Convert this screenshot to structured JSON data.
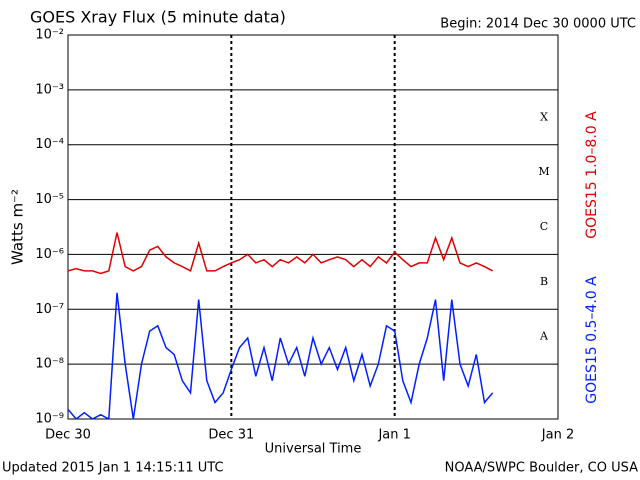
{
  "chart_data": {
    "type": "line",
    "title": "GOES Xray Flux (5 minute data)",
    "subtitle": "Begin:  2014 Dec 30 0000 UTC",
    "ylabel": "Watts m⁻²",
    "xlabel": "Universal Time",
    "footer_left": "Updated 2015 Jan  1 14:15:11 UTC",
    "footer_right": "NOAA/SWPC Boulder, CO USA",
    "class_labels": [
      "X",
      "M",
      "C",
      "B",
      "A"
    ],
    "log_y": true,
    "grid": true,
    "xlim": [
      0,
      3
    ],
    "xticks": [
      {
        "value": 0,
        "label": "Dec 30"
      },
      {
        "value": 1,
        "label": "Dec 31"
      },
      {
        "value": 2,
        "label": "Jan 1"
      },
      {
        "value": 3,
        "label": "Jan 2"
      }
    ],
    "ylim": [
      1e-09,
      0.01
    ],
    "yticks": [
      {
        "value": 1e-09,
        "label": "10⁻⁹"
      },
      {
        "value": 1e-08,
        "label": "10⁻⁸"
      },
      {
        "value": 1e-07,
        "label": "10⁻⁷"
      },
      {
        "value": 1e-06,
        "label": "10⁻⁶"
      },
      {
        "value": 1e-05,
        "label": "10⁻⁵"
      },
      {
        "value": 0.0001,
        "label": "10⁻⁴"
      },
      {
        "value": 0.001,
        "label": "10⁻³"
      },
      {
        "value": 0.01,
        "label": "10⁻²"
      }
    ],
    "x": [
      0,
      0.05,
      0.1,
      0.15,
      0.2,
      0.25,
      0.3,
      0.35,
      0.4,
      0.45,
      0.5,
      0.55,
      0.6,
      0.65,
      0.7,
      0.75,
      0.8,
      0.85,
      0.9,
      0.95,
      1,
      1.05,
      1.1,
      1.15,
      1.2,
      1.25,
      1.3,
      1.35,
      1.4,
      1.45,
      1.5,
      1.55,
      1.6,
      1.65,
      1.7,
      1.75,
      1.8,
      1.85,
      1.9,
      1.95,
      2,
      2.05,
      2.1,
      2.15,
      2.2,
      2.25,
      2.3,
      2.35,
      2.4,
      2.45,
      2.5,
      2.55,
      2.6
    ],
    "series": [
      {
        "name": "GOES15 1.0–8.0 A",
        "color": "#e00000",
        "values": [
          5e-07,
          5.5e-07,
          5e-07,
          5e-07,
          4.5e-07,
          5e-07,
          2.5e-06,
          6e-07,
          5e-07,
          6e-07,
          1.2e-06,
          1.4e-06,
          9e-07,
          7e-07,
          6e-07,
          5e-07,
          1.6e-06,
          5e-07,
          5e-07,
          6e-07,
          7e-07,
          8e-07,
          1e-06,
          7e-07,
          8e-07,
          6e-07,
          8e-07,
          7e-07,
          9e-07,
          7e-07,
          1e-06,
          7e-07,
          8e-07,
          9e-07,
          8e-07,
          6e-07,
          8e-07,
          6e-07,
          9e-07,
          7e-07,
          1.1e-06,
          8e-07,
          6e-07,
          7e-07,
          7e-07,
          2e-06,
          8e-07,
          2e-06,
          7e-07,
          6e-07,
          7e-07,
          6e-07,
          5e-07
        ]
      },
      {
        "name": "GOES15 0.5–4.0 A",
        "color": "#0020ff",
        "values": [
          1.5e-09,
          1e-09,
          1.3e-09,
          1e-09,
          1.2e-09,
          1e-09,
          2e-07,
          1e-08,
          1e-09,
          1e-08,
          4e-08,
          5e-08,
          2e-08,
          1.5e-08,
          5e-09,
          3e-09,
          1.5e-07,
          5e-09,
          2e-09,
          3e-09,
          8e-09,
          2e-08,
          3e-08,
          6e-09,
          2e-08,
          5e-09,
          3e-08,
          1e-08,
          2e-08,
          6e-09,
          3e-08,
          1e-08,
          2e-08,
          8e-09,
          2e-08,
          5e-09,
          1.5e-08,
          4e-09,
          1e-08,
          5e-08,
          4e-08,
          5e-09,
          2e-09,
          1e-08,
          3e-08,
          1.5e-07,
          5e-09,
          1.5e-07,
          1e-08,
          4e-09,
          1.5e-08,
          2e-09,
          3e-09
        ]
      }
    ]
  }
}
